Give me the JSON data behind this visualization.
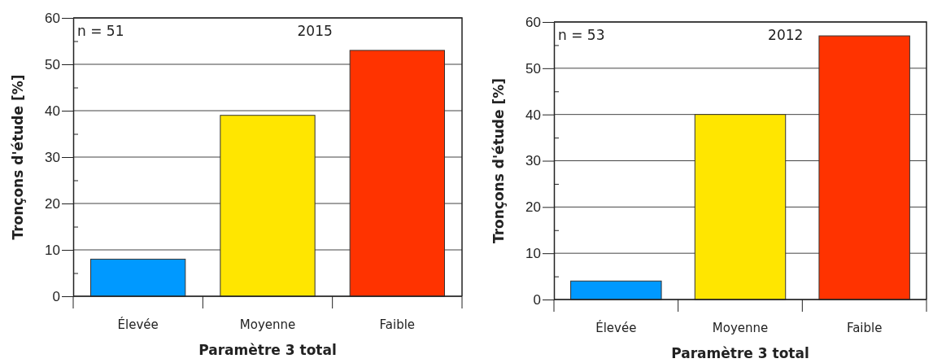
{
  "chart_data": [
    {
      "type": "bar",
      "categories": [
        "Élevée",
        "Moyenne",
        "Faible"
      ],
      "values": [
        8,
        39,
        53
      ],
      "colors": [
        "#0099ff",
        "#ffe600",
        "#ff3300"
      ],
      "xlabel": "Paramètre 3 total",
      "ylabel": "Tronçons d'étude [%]",
      "ylim": [
        0,
        60
      ],
      "yticks": [
        0,
        {
          "value": 5,
          "label": null
        },
        10,
        {
          "value": 15,
          "label": null
        },
        20,
        {
          "value": 25,
          "label": null
        },
        30,
        {
          "value": 35,
          "label": null
        },
        40,
        {
          "value": 45,
          "label": null
        },
        50,
        {
          "value": 55,
          "label": null
        },
        60
      ],
      "grid": "y",
      "annotations": [
        "n = 51",
        "2015"
      ]
    },
    {
      "type": "bar",
      "categories": [
        "Élevée",
        "Moyenne",
        "Faible"
      ],
      "values": [
        4,
        40,
        57
      ],
      "colors": [
        "#0099ff",
        "#ffe600",
        "#ff3300"
      ],
      "xlabel": "Paramètre 3 total",
      "ylabel": "Tronçons d'étude [%]",
      "ylim": [
        0,
        60
      ],
      "yticks": [
        0,
        {
          "value": 5,
          "label": null
        },
        10,
        {
          "value": 15,
          "label": null
        },
        20,
        {
          "value": 25,
          "label": null
        },
        30,
        {
          "value": 35,
          "label": null
        },
        40,
        {
          "value": 45,
          "label": null
        },
        50,
        {
          "value": 55,
          "label": null
        },
        60
      ],
      "grid": "y",
      "annotations": [
        "n = 53",
        "2012"
      ]
    }
  ]
}
